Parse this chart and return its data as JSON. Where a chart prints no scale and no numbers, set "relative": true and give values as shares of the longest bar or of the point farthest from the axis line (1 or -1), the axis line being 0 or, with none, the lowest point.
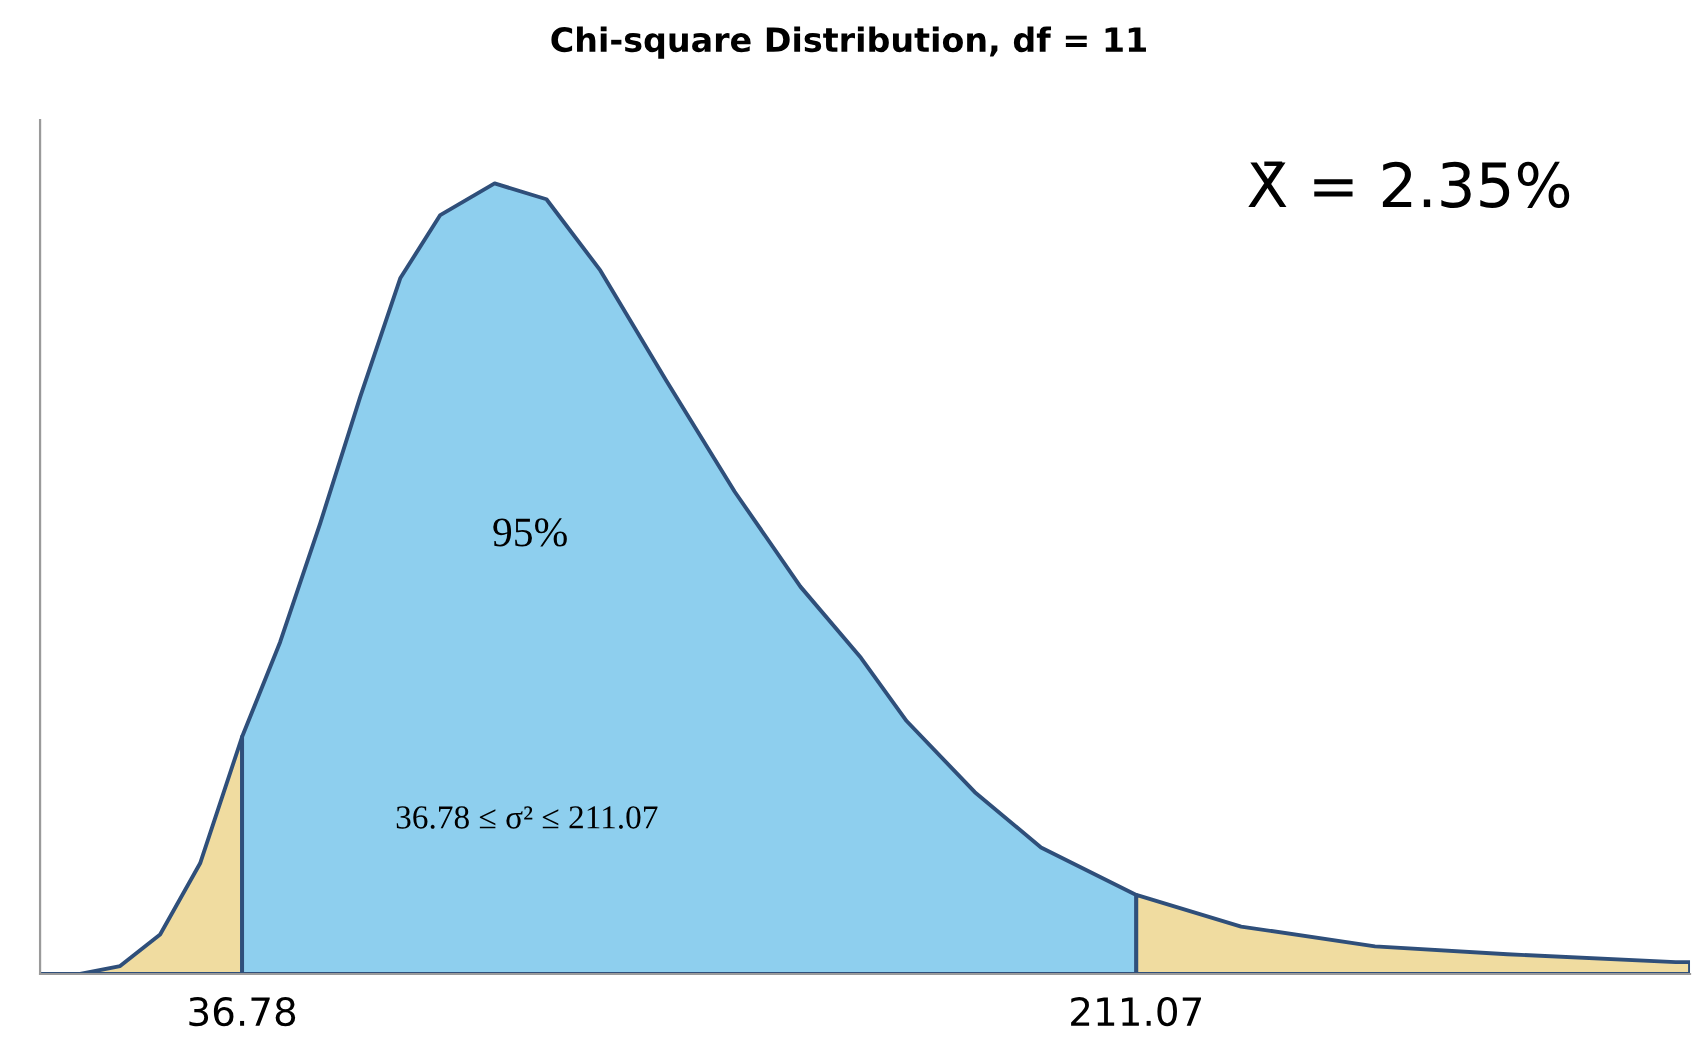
{
  "chart_data": {
    "type": "area",
    "title": "Chi-square Distribution, df = 11",
    "relative": true,
    "tick_labels": "x",
    "xlim": [
      -2.6,
      319
    ],
    "xticks": [
      36.78,
      211.07
    ],
    "annotations": [
      "95%",
      "36.78 ≤ σ² ≤ 211.07",
      "X̄ = 2.35%"
    ],
    "series": [
      {
        "color": "#f0dca0",
        "x": [
          -2.6,
          5.2,
          13.0,
          20.8,
          28.6,
          36.78
        ],
        "values": [
          0,
          0,
          0.01,
          0.05,
          0.14,
          0.3
        ]
      },
      {
        "color": "#8ecfee",
        "x": [
          36.78,
          44.2,
          52.0,
          59.8,
          67.6,
          75.4,
          86.0,
          96.1,
          106.6,
          119.5,
          132.8,
          145.6,
          157.4,
          166.3,
          179.6,
          192.5,
          211.07
        ],
        "values": [
          0.3,
          0.42,
          0.57,
          0.73,
          0.88,
          0.96,
          1.0,
          0.98,
          0.89,
          0.75,
          0.61,
          0.49,
          0.4,
          0.32,
          0.23,
          0.16,
          0.1
        ]
      },
      {
        "color": "#f0dca0",
        "x": [
          211.07,
          231.5,
          257.6,
          283.4,
          316.2,
          319
        ],
        "values": [
          0.1,
          0.06,
          0.035,
          0.025,
          0.015,
          0.015
        ]
      }
    ]
  }
}
